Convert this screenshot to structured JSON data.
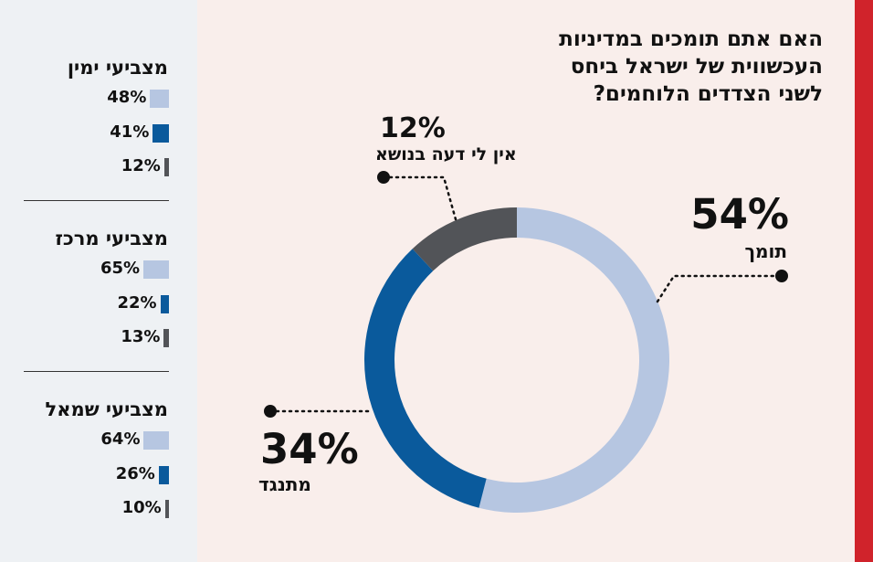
{
  "question": "האם אתם תומכים במדיניות העכשווית של ישראל ביחס לשני הצדדים הלוחמים?",
  "colors": {
    "support": "#b6c6e1",
    "oppose": "#0a5a9c",
    "no_opinion": "#525458",
    "accent": "#d0232b"
  },
  "chart_data": [
    {
      "type": "pie",
      "title": "האם אתם תומכים במדיניות העכשווית של ישראל ביחס לשני הצדדים הלוחמים?",
      "style": "donut",
      "slices": [
        {
          "label": "תומך",
          "value": 54,
          "display": "54%"
        },
        {
          "label": "מתנגד",
          "value": 34,
          "display": "34%"
        },
        {
          "label": "אין לי דעה בנושא",
          "value": 12,
          "display": "12%"
        }
      ]
    },
    {
      "type": "bar",
      "orientation": "horizontal",
      "categories": [
        "מצביעי ימין",
        "מצביעי מרכז",
        "מצביעי שמאל"
      ],
      "series": [
        {
          "name": "תומך",
          "values": [
            48,
            65,
            64
          ]
        },
        {
          "name": "מתנגד",
          "values": [
            41,
            22,
            26
          ]
        },
        {
          "name": "אין לי דעה בנושא",
          "values": [
            12,
            13,
            10
          ]
        }
      ],
      "groups": [
        {
          "title": "מצביעי ימין",
          "bars": [
            {
              "display": "48%"
            },
            {
              "display": "41%"
            },
            {
              "display": "12%"
            }
          ]
        },
        {
          "title": "מצביעי מרכז",
          "bars": [
            {
              "display": "65%"
            },
            {
              "display": "22%"
            },
            {
              "display": "13%"
            }
          ]
        },
        {
          "title": "מצביעי שמאל",
          "bars": [
            {
              "display": "64%"
            },
            {
              "display": "26%"
            },
            {
              "display": "10%"
            }
          ]
        }
      ]
    }
  ]
}
